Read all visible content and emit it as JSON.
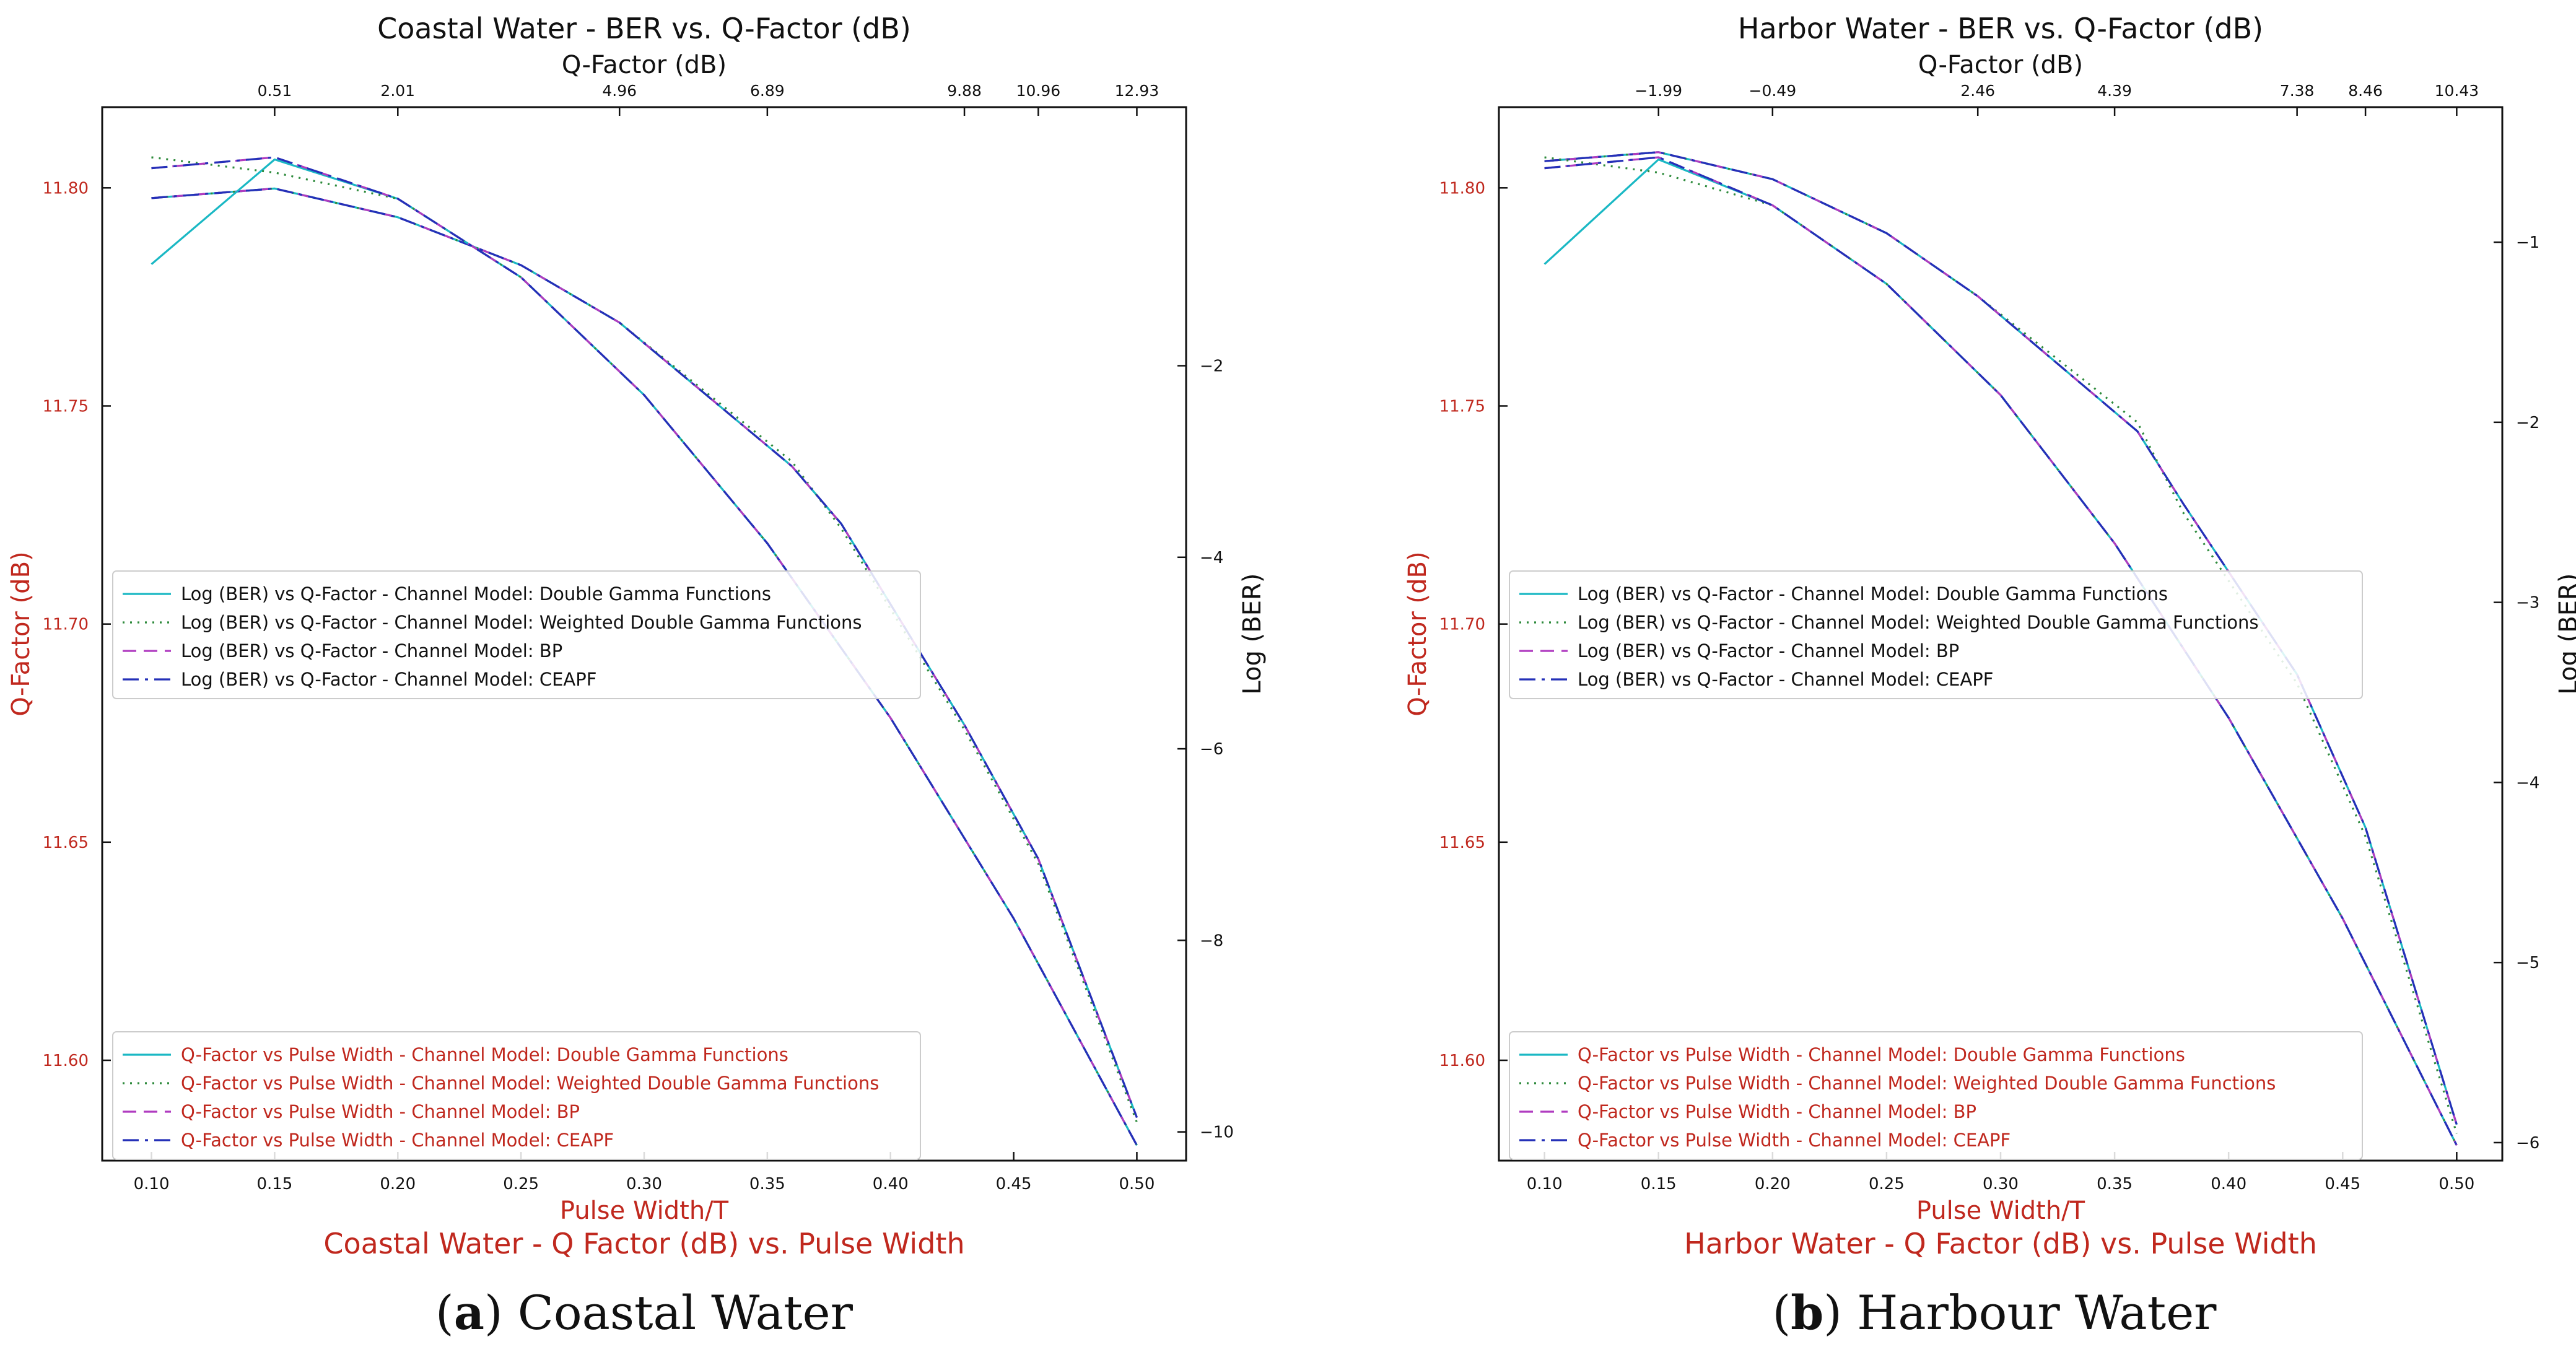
{
  "colors": {
    "red": "#c0281e",
    "cyan": "#1ab8c4",
    "green": "#2e8b3c",
    "magenta": "#b03cc0",
    "blue": "#2430b8",
    "axis": "#111111"
  },
  "panels": [
    {
      "id": "a",
      "caption": {
        "letter": "a",
        "text": " Coastal Water"
      },
      "chart_data": {
        "type": "line",
        "title_top": "Coastal Water - BER vs. Q-Factor (dB)",
        "title_bottom": "Coastal Water - Q Factor (dB) vs. Pulse Width",
        "xlabel": "Pulse Width/T",
        "ylabel_left": "Q-Factor (dB)",
        "ylabel_right": "Log (BER)",
        "xlabel_top": "Q-Factor (dB)",
        "xlim": [
          0.08,
          0.52
        ],
        "ylim_left": [
          11.577,
          11.8185
        ],
        "ylim_right": [
          -10.3,
          0.7
        ],
        "x_ticks": [
          0.1,
          0.15,
          0.2,
          0.25,
          0.3,
          0.35,
          0.4,
          0.45,
          0.5
        ],
        "x_tick_labels": [
          "0.10",
          "0.15",
          "0.20",
          "0.25",
          "0.30",
          "0.35",
          "0.40",
          "0.45",
          "0.50"
        ],
        "y_left_ticks": [
          11.6,
          11.65,
          11.7,
          11.75,
          11.8
        ],
        "y_left_tick_labels": [
          "11.60",
          "11.65",
          "11.70",
          "11.75",
          "11.80"
        ],
        "y_right_ticks": [
          -10,
          -8,
          -6,
          -4,
          -2
        ],
        "y_right_tick_labels": [
          "−10",
          "−8",
          "−6",
          "−4",
          "−2"
        ],
        "top_ticks_at_x": [
          0.15,
          0.2,
          0.29,
          0.35,
          0.43,
          0.46,
          0.5
        ],
        "top_tick_labels": [
          "0.51",
          "2.01",
          "4.96",
          "6.89",
          "9.88",
          "10.96",
          "12.93"
        ],
        "legend_ber": {
          "placement": "middle-left",
          "entries": [
            "Log (BER) vs Q-Factor - Channel Model: Double Gamma Functions",
            "Log (BER) vs Q-Factor - Channel Model: Weighted Double Gamma Functions",
            "Log (BER) vs Q-Factor - Channel Model: BP",
            "Log (BER) vs Q-Factor - Channel Model: CEAPF"
          ]
        },
        "legend_q": {
          "placement": "lower-left",
          "entries": [
            "Q-Factor vs Pulse Width - Channel Model: Double Gamma Functions",
            "Q-Factor vs Pulse Width - Channel Model: Weighted Double Gamma Functions",
            "Q-Factor vs Pulse Width - Channel Model: BP",
            "Q-Factor vs Pulse Width - Channel Model: CEAPF"
          ]
        },
        "ber_series": [
          {
            "name": "Double Gamma Functions",
            "style": "solid",
            "color": "cyan",
            "x": [
              0.1,
              0.15,
              0.2,
              0.25,
              0.29,
              0.36,
              0.38,
              0.43,
              0.46,
              0.5
            ],
            "y": [
              -0.25,
              -0.15,
              -0.45,
              -0.95,
              -1.55,
              -3.05,
              -3.65,
              -5.75,
              -7.15,
              -9.85
            ]
          },
          {
            "name": "Weighted Double Gamma Functions",
            "style": "dotted",
            "color": "green",
            "x": [
              0.1,
              0.15,
              0.2,
              0.25,
              0.29,
              0.36,
              0.38,
              0.43,
              0.46,
              0.5
            ],
            "y": [
              -0.25,
              -0.15,
              -0.45,
              -0.95,
              -1.55,
              -3.0,
              -3.7,
              -5.8,
              -7.2,
              -9.9
            ]
          },
          {
            "name": "BP",
            "style": "dashed",
            "color": "magenta",
            "x": [
              0.1,
              0.15,
              0.2,
              0.25,
              0.29,
              0.36,
              0.38,
              0.43,
              0.46,
              0.5
            ],
            "y": [
              -0.25,
              -0.15,
              -0.45,
              -0.95,
              -1.55,
              -3.05,
              -3.65,
              -5.75,
              -7.15,
              -9.85
            ]
          },
          {
            "name": "CEAPF",
            "style": "dashdot",
            "color": "blue",
            "x": [
              0.1,
              0.15,
              0.2,
              0.25,
              0.29,
              0.36,
              0.38,
              0.43,
              0.46,
              0.5
            ],
            "y": [
              -0.25,
              -0.15,
              -0.45,
              -0.95,
              -1.55,
              -3.05,
              -3.65,
              -5.75,
              -7.15,
              -9.85
            ]
          }
        ],
        "q_series": [
          {
            "name": "Double Gamma Functions",
            "style": "solid",
            "color": "cyan",
            "x": [
              0.1,
              0.15,
              0.2,
              0.25,
              0.3,
              0.35,
              0.4,
              0.45,
              0.5
            ],
            "y": [
              11.7825,
              11.8065,
              11.7975,
              11.7795,
              11.7525,
              11.7185,
              11.6785,
              11.6325,
              11.5805
            ]
          },
          {
            "name": "Weighted Double Gamma Functions",
            "style": "dotted",
            "color": "green",
            "x": [
              0.1,
              0.15,
              0.2,
              0.25,
              0.3,
              0.35,
              0.4,
              0.45,
              0.5
            ],
            "y": [
              11.807,
              11.8035,
              11.7975,
              11.7795,
              11.7525,
              11.7185,
              11.6785,
              11.6325,
              11.5805
            ]
          },
          {
            "name": "BP",
            "style": "dashed",
            "color": "magenta",
            "x": [
              0.1,
              0.15,
              0.2,
              0.25,
              0.3,
              0.35,
              0.4,
              0.45,
              0.5
            ],
            "y": [
              11.8045,
              11.807,
              11.7975,
              11.7795,
              11.7525,
              11.7185,
              11.6785,
              11.6325,
              11.5805
            ]
          },
          {
            "name": "CEAPF",
            "style": "dashdot",
            "color": "blue",
            "x": [
              0.1,
              0.15,
              0.2,
              0.25,
              0.3,
              0.35,
              0.4,
              0.45,
              0.5
            ],
            "y": [
              11.8045,
              11.807,
              11.7975,
              11.7795,
              11.7525,
              11.7185,
              11.6785,
              11.6325,
              11.5805
            ]
          }
        ]
      }
    },
    {
      "id": "b",
      "caption": {
        "letter": "b",
        "text": " Harbour Water"
      },
      "chart_data": {
        "type": "line",
        "title_top": "Harbor Water - BER vs. Q-Factor (dB)",
        "title_bottom": "Harbor Water - Q Factor (dB) vs. Pulse Width",
        "xlabel": "Pulse Width/T",
        "ylabel_left": "Q-Factor (dB)",
        "ylabel_right": "Log (BER)",
        "xlabel_top": "Q-Factor (dB)",
        "xlim": [
          0.08,
          0.52
        ],
        "ylim_left": [
          11.577,
          11.8185
        ],
        "ylim_right": [
          -6.1,
          -0.25
        ],
        "x_ticks": [
          0.1,
          0.15,
          0.2,
          0.25,
          0.3,
          0.35,
          0.4,
          0.45,
          0.5
        ],
        "x_tick_labels": [
          "0.10",
          "0.15",
          "0.20",
          "0.25",
          "0.30",
          "0.35",
          "0.40",
          "0.45",
          "0.50"
        ],
        "y_left_ticks": [
          11.6,
          11.65,
          11.7,
          11.75,
          11.8
        ],
        "y_left_tick_labels": [
          "11.60",
          "11.65",
          "11.70",
          "11.75",
          "11.80"
        ],
        "y_right_ticks": [
          -6,
          -5,
          -4,
          -3,
          -2,
          -1
        ],
        "y_right_tick_labels": [
          "−6",
          "−5",
          "−4",
          "−3",
          "−2",
          "−1"
        ],
        "top_ticks_at_x": [
          0.15,
          0.2,
          0.29,
          0.35,
          0.43,
          0.46,
          0.5
        ],
        "top_tick_labels": [
          "−1.99",
          "−0.49",
          "2.46",
          "4.39",
          "7.38",
          "8.46",
          "10.43"
        ],
        "legend_ber": {
          "placement": "middle-left",
          "entries": [
            "Log (BER) vs Q-Factor - Channel Model: Double Gamma Functions",
            "Log (BER) vs Q-Factor - Channel Model: Weighted Double Gamma Functions",
            "Log (BER) vs Q-Factor - Channel Model: BP",
            "Log (BER) vs Q-Factor - Channel Model: CEAPF"
          ]
        },
        "legend_q": {
          "placement": "lower-left",
          "entries": [
            "Q-Factor vs Pulse Width - Channel Model: Double Gamma Functions",
            "Q-Factor vs Pulse Width - Channel Model: Weighted Double Gamma Functions",
            "Q-Factor vs Pulse Width - Channel Model: BP",
            "Q-Factor vs Pulse Width - Channel Model: CEAPF"
          ]
        },
        "ber_series": [
          {
            "name": "Double Gamma Functions",
            "style": "solid",
            "color": "cyan",
            "x": [
              0.1,
              0.15,
              0.2,
              0.25,
              0.29,
              0.36,
              0.38,
              0.43,
              0.46,
              0.5
            ],
            "y": [
              -0.55,
              -0.5,
              -0.65,
              -0.95,
              -1.3,
              -2.05,
              -2.45,
              -3.4,
              -4.25,
              -5.9
            ]
          },
          {
            "name": "Weighted Double Gamma Functions",
            "style": "dotted",
            "color": "green",
            "x": [
              0.1,
              0.15,
              0.2,
              0.25,
              0.29,
              0.36,
              0.38,
              0.43,
              0.46,
              0.5
            ],
            "y": [
              -0.55,
              -0.5,
              -0.65,
              -0.95,
              -1.3,
              -2.0,
              -2.5,
              -3.45,
              -4.3,
              -5.95
            ]
          },
          {
            "name": "BP",
            "style": "dashed",
            "color": "magenta",
            "x": [
              0.1,
              0.15,
              0.2,
              0.25,
              0.29,
              0.36,
              0.38,
              0.43,
              0.46,
              0.5
            ],
            "y": [
              -0.55,
              -0.5,
              -0.65,
              -0.95,
              -1.3,
              -2.05,
              -2.45,
              -3.4,
              -4.25,
              -5.9
            ]
          },
          {
            "name": "CEAPF",
            "style": "dashdot",
            "color": "blue",
            "x": [
              0.1,
              0.15,
              0.2,
              0.25,
              0.29,
              0.36,
              0.38,
              0.43,
              0.46,
              0.5
            ],
            "y": [
              -0.55,
              -0.5,
              -0.65,
              -0.95,
              -1.3,
              -2.05,
              -2.45,
              -3.4,
              -4.25,
              -5.9
            ]
          }
        ],
        "q_series": [
          {
            "name": "Double Gamma Functions",
            "style": "solid",
            "color": "cyan",
            "x": [
              0.1,
              0.15,
              0.2,
              0.25,
              0.3,
              0.35,
              0.4,
              0.45,
              0.5
            ],
            "y": [
              11.7825,
              11.8065,
              11.796,
              11.778,
              11.7525,
              11.7185,
              11.6785,
              11.6325,
              11.5805
            ]
          },
          {
            "name": "Weighted Double Gamma Functions",
            "style": "dotted",
            "color": "green",
            "x": [
              0.1,
              0.15,
              0.2,
              0.25,
              0.3,
              0.35,
              0.4,
              0.45,
              0.5
            ],
            "y": [
              11.807,
              11.8035,
              11.796,
              11.778,
              11.7525,
              11.7185,
              11.6785,
              11.6325,
              11.5805
            ]
          },
          {
            "name": "BP",
            "style": "dashed",
            "color": "magenta",
            "x": [
              0.1,
              0.15,
              0.2,
              0.25,
              0.3,
              0.35,
              0.4,
              0.45,
              0.5
            ],
            "y": [
              11.8045,
              11.807,
              11.796,
              11.778,
              11.7525,
              11.7185,
              11.6785,
              11.6325,
              11.5805
            ]
          },
          {
            "name": "CEAPF",
            "style": "dashdot",
            "color": "blue",
            "x": [
              0.1,
              0.15,
              0.2,
              0.25,
              0.3,
              0.35,
              0.4,
              0.45,
              0.5
            ],
            "y": [
              11.8045,
              11.807,
              11.796,
              11.778,
              11.7525,
              11.7185,
              11.6785,
              11.6325,
              11.5805
            ]
          }
        ]
      }
    }
  ],
  "chart_data": [
    {
      "ref": "panels.0.chart_data"
    },
    {
      "ref": "panels.1.chart_data"
    }
  ]
}
